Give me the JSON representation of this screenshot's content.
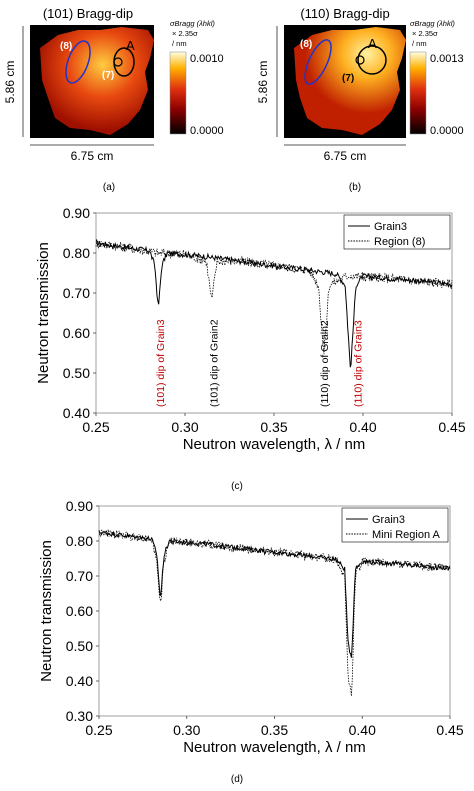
{
  "panels": {
    "a": {
      "title": "(101) Bragg-dip",
      "cb_label_line1": "σBragg (λhkl)",
      "cb_label_line2": "× 2.35σ",
      "cb_label_line3": "/ nm",
      "cb_max": "0.0010",
      "cb_min": "0.0000",
      "height_label": "5.86 cm",
      "width_label": "6.75 cm",
      "region8": "(8)",
      "region7": "(7)",
      "regionA": "A",
      "caption": "(a)"
    },
    "b": {
      "title": "(110) Bragg-dip",
      "cb_label_line1": "σBragg (λhkl)",
      "cb_label_line2": "× 2.35σ",
      "cb_label_line3": "/ nm",
      "cb_max": "0.0013",
      "cb_min": "0.0000",
      "height_label": "5.86 cm",
      "width_label": "6.75 cm",
      "region8": "(8)",
      "region7": "(7)",
      "regionA": "A",
      "caption": "(b)"
    },
    "c_caption": "(c)",
    "d_caption": "(d)"
  },
  "chart_data": [
    {
      "type": "line",
      "panel": "c",
      "xlabel": "Neutron wavelength, λ / nm",
      "ylabel": "Neutron transmission",
      "xlim": [
        0.25,
        0.45
      ],
      "ylim": [
        0.4,
        0.9
      ],
      "xticks": [
        "0.25",
        "0.30",
        "0.35",
        "0.40",
        "0.45"
      ],
      "yticks": [
        "0.40",
        "0.50",
        "0.60",
        "0.70",
        "0.80",
        "0.90"
      ],
      "legend_position": "top-right",
      "series": [
        {
          "name": "Grain3",
          "style": "solid",
          "x": [
            0.25,
            0.27,
            0.28,
            0.283,
            0.285,
            0.287,
            0.29,
            0.31,
            0.33,
            0.35,
            0.37,
            0.385,
            0.39,
            0.393,
            0.396,
            0.4,
            0.42,
            0.45
          ],
          "y": [
            0.825,
            0.812,
            0.806,
            0.77,
            0.66,
            0.77,
            0.8,
            0.792,
            0.78,
            0.768,
            0.757,
            0.748,
            0.72,
            0.505,
            0.72,
            0.742,
            0.735,
            0.722
          ]
        },
        {
          "name": "Region (8)",
          "style": "dotted",
          "x": [
            0.25,
            0.27,
            0.285,
            0.3,
            0.312,
            0.315,
            0.318,
            0.33,
            0.35,
            0.37,
            0.375,
            0.378,
            0.381,
            0.39,
            0.393,
            0.396,
            0.42,
            0.45
          ],
          "y": [
            0.825,
            0.812,
            0.8,
            0.797,
            0.78,
            0.68,
            0.78,
            0.78,
            0.768,
            0.757,
            0.72,
            0.545,
            0.72,
            0.74,
            0.745,
            0.742,
            0.735,
            0.722
          ]
        }
      ],
      "annotations": [
        {
          "text": "(101) dip of Grain3",
          "x": 0.286,
          "color": "#c00000"
        },
        {
          "text": "(101) dip of Grain2",
          "x": 0.316,
          "color": "#000000"
        },
        {
          "text": "(110) dip of Grain2",
          "x": 0.378,
          "color": "#000000"
        },
        {
          "text": "(110) dip of Grain3",
          "x": 0.397,
          "color": "#c00000"
        }
      ]
    },
    {
      "type": "line",
      "panel": "d",
      "xlabel": "Neutron wavelength, λ / nm",
      "ylabel": "Neutron transmission",
      "xlim": [
        0.25,
        0.45
      ],
      "ylim": [
        0.3,
        0.9
      ],
      "xticks": [
        "0.25",
        "0.30",
        "0.35",
        "0.40",
        "0.45"
      ],
      "yticks": [
        "0.30",
        "0.40",
        "0.50",
        "0.60",
        "0.70",
        "0.80",
        "0.90"
      ],
      "legend_position": "top-right",
      "series": [
        {
          "name": "Grain3",
          "style": "solid",
          "x": [
            0.25,
            0.27,
            0.28,
            0.283,
            0.285,
            0.287,
            0.29,
            0.31,
            0.33,
            0.35,
            0.37,
            0.385,
            0.39,
            0.392,
            0.394,
            0.396,
            0.4,
            0.42,
            0.45
          ],
          "y": [
            0.825,
            0.812,
            0.806,
            0.76,
            0.63,
            0.76,
            0.8,
            0.792,
            0.78,
            0.768,
            0.757,
            0.748,
            0.72,
            0.5,
            0.47,
            0.72,
            0.742,
            0.735,
            0.722
          ]
        },
        {
          "name": "Mini Region A",
          "style": "dotted",
          "x": [
            0.25,
            0.27,
            0.28,
            0.283,
            0.285,
            0.287,
            0.29,
            0.31,
            0.33,
            0.35,
            0.37,
            0.385,
            0.39,
            0.392,
            0.394,
            0.396,
            0.4,
            0.42,
            0.45
          ],
          "y": [
            0.825,
            0.812,
            0.806,
            0.74,
            0.61,
            0.74,
            0.8,
            0.792,
            0.78,
            0.768,
            0.757,
            0.748,
            0.7,
            0.4,
            0.36,
            0.7,
            0.742,
            0.735,
            0.722
          ]
        }
      ]
    }
  ]
}
